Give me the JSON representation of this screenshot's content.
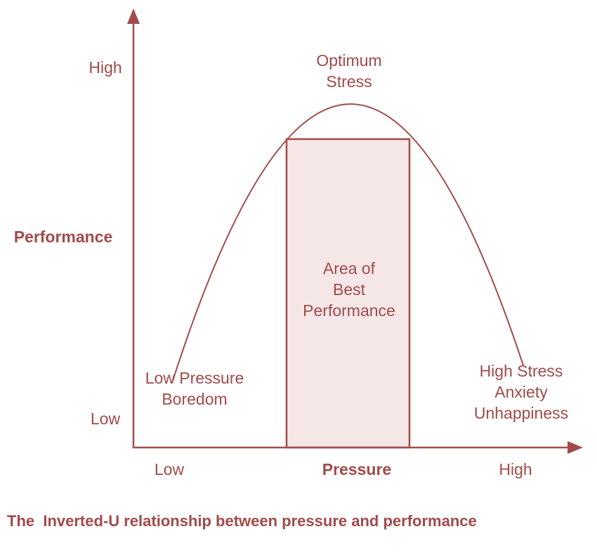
{
  "y_axis": {
    "title": "Performance",
    "high": "High",
    "low": "Low"
  },
  "x_axis": {
    "title": "Pressure",
    "low": "Low",
    "high": "High"
  },
  "labels": {
    "optimum": [
      "Optimum",
      "Stress"
    ],
    "best_area": [
      "Area of",
      "Best",
      "Performance"
    ],
    "low_pressure": [
      "Low Pressure",
      "Boredom"
    ],
    "high_stress": [
      "High Stress",
      "Anxiety",
      "Unhappiness"
    ]
  },
  "caption": "The  Inverted-U relationship between pressure and performance"
}
